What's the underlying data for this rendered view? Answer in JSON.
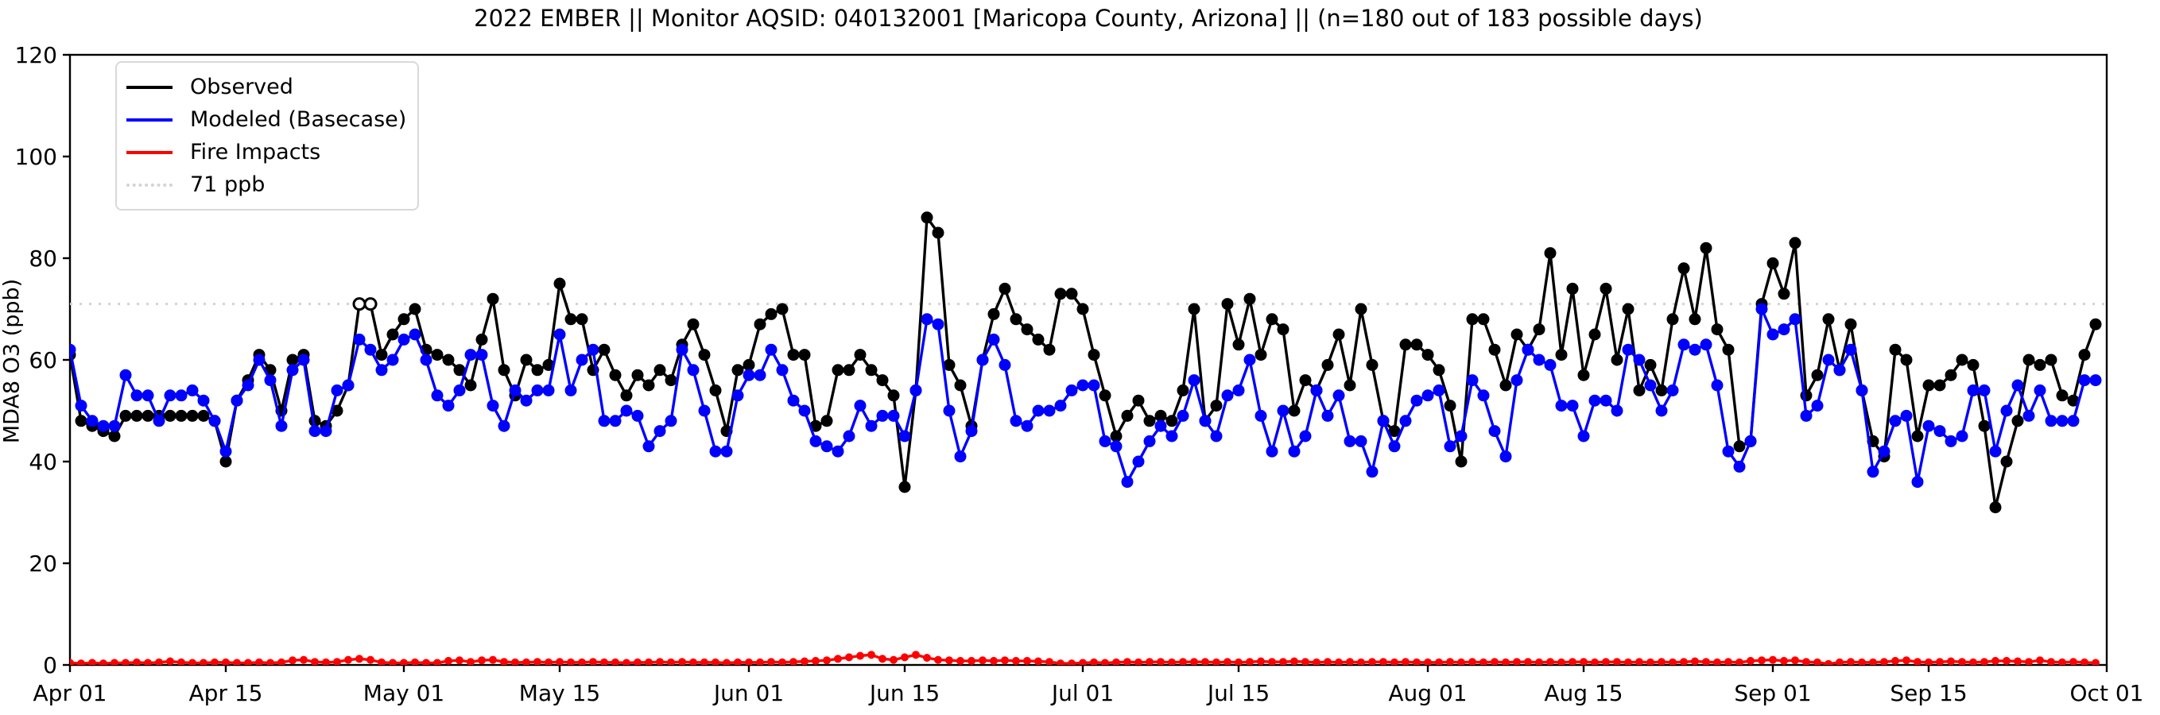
{
  "chart_data": {
    "type": "line",
    "title": "2022 EMBER || Monitor AQSID: 040132001 [Maricopa County, Arizona] || (n=180 out of 183 possible days)",
    "ylabel": "MDA8 O3 (ppb)",
    "xlabel": "",
    "ylim": [
      0,
      120
    ],
    "y_ticks": [
      0,
      20,
      40,
      60,
      80,
      100,
      120
    ],
    "x_range_days": 183,
    "start_date_label": "Apr 01",
    "end_date_label": "Oct 01",
    "grid": false,
    "legend_position": "upper-left",
    "x_ticks": [
      {
        "label": "Apr 01",
        "day": 0
      },
      {
        "label": "Apr 15",
        "day": 14
      },
      {
        "label": "May 01",
        "day": 30
      },
      {
        "label": "May 15",
        "day": 44
      },
      {
        "label": "Jun 01",
        "day": 61
      },
      {
        "label": "Jun 15",
        "day": 75
      },
      {
        "label": "Jul 01",
        "day": 91
      },
      {
        "label": "Jul 15",
        "day": 105
      },
      {
        "label": "Aug 01",
        "day": 122
      },
      {
        "label": "Aug 15",
        "day": 136
      },
      {
        "label": "Sep 01",
        "day": 153
      },
      {
        "label": "Sep 15",
        "day": 167
      },
      {
        "label": "Oct 01",
        "day": 183
      }
    ],
    "threshold": {
      "value": 71,
      "label": "71 ppb",
      "color": "#d3d3d3",
      "style": "dotted"
    },
    "legend": [
      {
        "label": "Observed",
        "swatch": "solid-black"
      },
      {
        "label": "Modeled (Basecase)",
        "swatch": "solid-blue"
      },
      {
        "label": "Fire Impacts",
        "swatch": "solid-red"
      },
      {
        "label": "71 ppb",
        "swatch": "dotted-gray"
      }
    ],
    "series": [
      {
        "name": "Observed",
        "color": "#000000",
        "marker": "circle",
        "marker_radius": 7,
        "open_marker_day_indices": [
          26,
          27
        ],
        "values": [
          61,
          48,
          47,
          46,
          45,
          49,
          49,
          49,
          49,
          49,
          49,
          49,
          49,
          48,
          40,
          52,
          56,
          61,
          58,
          50,
          60,
          61,
          48,
          47,
          50,
          55,
          71,
          71,
          61,
          65,
          68,
          70,
          62,
          61,
          60,
          58,
          55,
          64,
          72,
          58,
          53,
          60,
          58,
          59,
          75,
          68,
          68,
          58,
          62,
          57,
          53,
          57,
          55,
          58,
          56,
          63,
          67,
          61,
          54,
          46,
          58,
          59,
          67,
          69,
          70,
          61,
          61,
          47,
          48,
          58,
          58,
          61,
          58,
          56,
          53,
          35,
          54,
          88,
          85,
          59,
          55,
          47,
          60,
          69,
          74,
          68,
          66,
          64,
          62,
          73,
          73,
          70,
          61,
          53,
          45,
          49,
          52,
          48,
          49,
          48,
          54,
          70,
          48,
          51,
          71,
          63,
          72,
          61,
          68,
          66,
          50,
          56,
          54,
          59,
          65,
          55,
          70,
          59,
          48,
          46,
          63,
          63,
          61,
          58,
          51,
          40,
          68,
          68,
          62,
          55,
          65,
          62,
          66,
          81,
          61,
          74,
          57,
          65,
          74,
          60,
          70,
          54,
          59,
          54,
          68,
          78,
          68,
          82,
          66,
          62,
          43,
          44,
          71,
          79,
          73,
          83,
          53,
          57,
          68,
          58,
          67,
          54,
          44,
          41,
          62,
          60,
          45,
          55,
          55,
          57,
          60,
          59,
          47,
          31,
          40,
          48,
          60,
          59,
          60,
          53,
          52,
          61,
          67
        ]
      },
      {
        "name": "Modeled (Basecase)",
        "color": "#0000ff",
        "marker": "circle",
        "marker_radius": 7,
        "values": [
          62,
          51,
          48,
          47,
          47,
          57,
          53,
          53,
          48,
          53,
          53,
          54,
          52,
          48,
          42,
          52,
          55,
          60,
          56,
          47,
          58,
          60,
          46,
          46,
          54,
          55,
          64,
          62,
          58,
          60,
          64,
          65,
          60,
          53,
          51,
          54,
          61,
          61,
          51,
          47,
          54,
          52,
          54,
          54,
          65,
          54,
          60,
          62,
          48,
          48,
          50,
          49,
          43,
          46,
          48,
          62,
          58,
          50,
          42,
          42,
          53,
          57,
          57,
          62,
          58,
          52,
          50,
          44,
          43,
          42,
          45,
          51,
          47,
          49,
          49,
          45,
          54,
          68,
          67,
          50,
          41,
          46,
          60,
          64,
          59,
          48,
          47,
          50,
          50,
          51,
          54,
          55,
          55,
          44,
          43,
          36,
          40,
          44,
          47,
          45,
          49,
          56,
          48,
          45,
          53,
          54,
          60,
          49,
          42,
          50,
          42,
          45,
          54,
          49,
          53,
          44,
          44,
          38,
          48,
          43,
          48,
          52,
          53,
          54,
          43,
          45,
          56,
          53,
          46,
          41,
          56,
          62,
          60,
          59,
          51,
          51,
          45,
          52,
          52,
          50,
          62,
          60,
          55,
          50,
          54,
          63,
          62,
          63,
          55,
          42,
          39,
          44,
          70,
          65,
          66,
          68,
          49,
          51,
          60,
          58,
          62,
          54,
          38,
          42,
          48,
          49,
          36,
          47,
          46,
          44,
          45,
          54,
          54,
          42,
          50,
          55,
          49,
          54,
          48,
          48,
          48,
          56,
          56
        ]
      },
      {
        "name": "Fire Impacts",
        "color": "#ff0000",
        "marker": "circle",
        "marker_radius": 4.5,
        "values": [
          0.4,
          0.3,
          0.4,
          0.3,
          0.4,
          0.4,
          0.5,
          0.4,
          0.5,
          0.7,
          0.5,
          0.4,
          0.4,
          0.5,
          0.5,
          0.4,
          0.4,
          0.5,
          0.4,
          0.5,
          0.9,
          1.0,
          0.6,
          0.5,
          0.6,
          1.0,
          1.2,
          1.0,
          0.5,
          0.4,
          0.4,
          0.5,
          0.4,
          0.4,
          0.8,
          0.9,
          0.6,
          0.9,
          1.0,
          0.6,
          0.5,
          0.5,
          0.6,
          0.5,
          0.6,
          0.5,
          0.5,
          0.6,
          0.5,
          0.5,
          0.4,
          0.5,
          0.5,
          0.6,
          0.5,
          0.6,
          0.5,
          0.5,
          0.5,
          0.4,
          0.5,
          0.5,
          0.5,
          0.6,
          0.5,
          0.6,
          0.7,
          0.8,
          0.9,
          1.2,
          1.5,
          1.8,
          2.0,
          1.2,
          1.0,
          1.5,
          2.0,
          1.4,
          1.0,
          0.9,
          0.8,
          0.8,
          0.9,
          0.8,
          0.9,
          0.8,
          0.8,
          0.7,
          0.6,
          0.3,
          0.3,
          0.4,
          0.5,
          0.4,
          0.5,
          0.6,
          0.5,
          0.6,
          0.6,
          0.5,
          0.6,
          0.6,
          0.6,
          0.5,
          0.6,
          0.5,
          0.6,
          0.7,
          0.6,
          0.6,
          0.7,
          0.6,
          0.5,
          0.6,
          0.5,
          0.6,
          0.5,
          0.6,
          0.6,
          0.5,
          0.6,
          0.5,
          0.5,
          0.5,
          0.6,
          0.5,
          0.6,
          0.5,
          0.6,
          0.5,
          0.6,
          0.6,
          0.5,
          0.6,
          0.5,
          0.6,
          0.6,
          0.5,
          0.6,
          0.6,
          0.5,
          0.6,
          0.5,
          0.6,
          0.5,
          0.6,
          0.7,
          0.6,
          0.5,
          0.6,
          0.5,
          0.8,
          0.9,
          1.0,
          0.8,
          0.9,
          0.6,
          0.5,
          0.2,
          0.5,
          0.6,
          0.5,
          0.5,
          0.6,
          0.8,
          0.9,
          0.6,
          0.5,
          0.6,
          0.7,
          0.6,
          0.5,
          0.6,
          0.8,
          0.8,
          0.7,
          0.6,
          0.9,
          0.6,
          0.5,
          0.6,
          0.5,
          0.4
        ]
      }
    ]
  }
}
